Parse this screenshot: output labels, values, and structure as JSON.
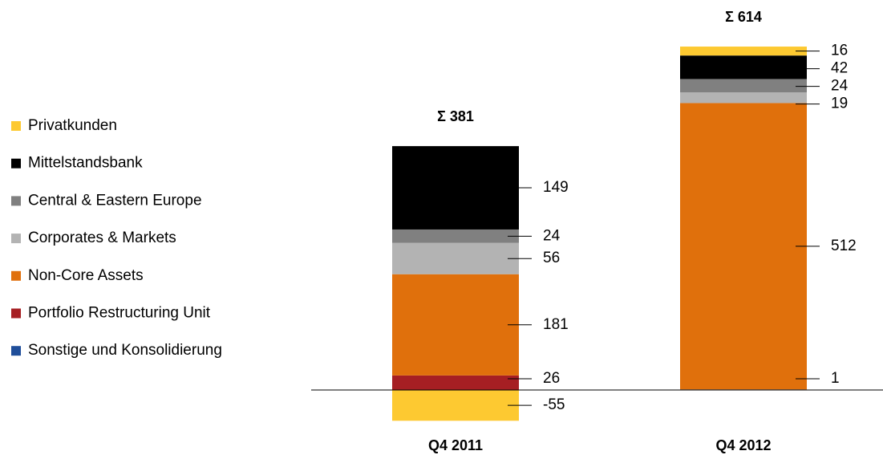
{
  "chart_data": {
    "type": "stacked_bar",
    "categories": [
      "Q4 2011",
      "Q4 2012"
    ],
    "series": [
      {
        "name": "Privatkunden",
        "color": "#fdc931",
        "values": [
          -55,
          16
        ]
      },
      {
        "name": "Mittelstandsbank",
        "color": "#000000",
        "values": [
          149,
          42
        ]
      },
      {
        "name": "Central & Eastern Europe",
        "color": "#808080",
        "values": [
          24,
          24
        ]
      },
      {
        "name": "Corporates & Markets",
        "color": "#b3b3b3",
        "values": [
          56,
          19
        ]
      },
      {
        "name": "Non-Core Assets",
        "color": "#e0700c",
        "values": [
          181,
          512
        ]
      },
      {
        "name": "Portfolio Restructuring Unit",
        "color": "#a61f23",
        "values": [
          26,
          null
        ]
      },
      {
        "name": "Sonstige und Konsolidierung",
        "color": "#1f4e9a",
        "values": [
          null,
          1
        ]
      }
    ],
    "totals": [
      381,
      614
    ],
    "totals_labels": [
      "Σ 381",
      "Σ 614"
    ]
  }
}
